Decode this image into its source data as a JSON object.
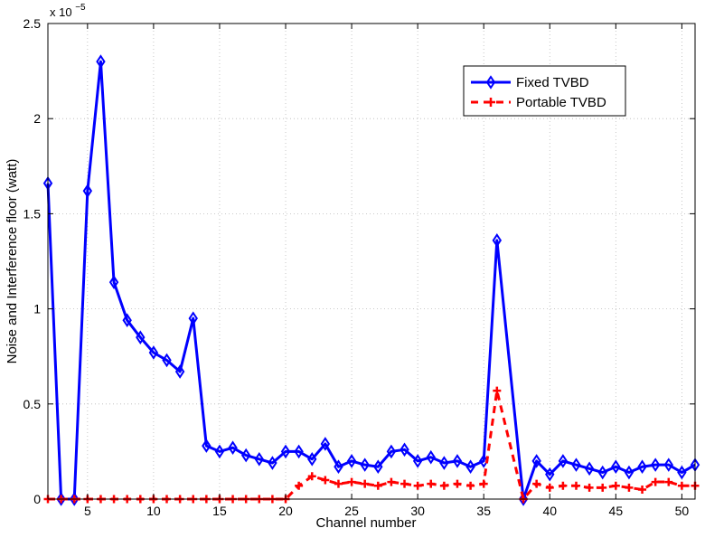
{
  "chart_data": {
    "type": "line",
    "xlabel": "Channel number",
    "ylabel": "Noise and Interference floor (watt)",
    "y_multiplier_label": "x 10",
    "y_multiplier_exponent": "−5",
    "xlim": [
      2,
      51
    ],
    "ylim": [
      0,
      2.5
    ],
    "y_scale_note": "values in units of 1e-5 watt",
    "xticks": [
      5,
      10,
      15,
      20,
      25,
      30,
      35,
      40,
      45,
      50
    ],
    "xtick_labels": [
      "5",
      "10",
      "15",
      "20",
      "25",
      "30",
      "35",
      "40",
      "45",
      "50"
    ],
    "yticks": [
      0,
      0.5,
      1,
      1.5,
      2,
      2.5
    ],
    "ytick_labels": [
      "0",
      "0.5",
      "1",
      "1.5",
      "2",
      "2.5"
    ],
    "grid": true,
    "legend_position": "top-right",
    "x": [
      2,
      3,
      4,
      5,
      6,
      7,
      8,
      9,
      10,
      11,
      12,
      13,
      14,
      15,
      16,
      17,
      18,
      19,
      20,
      21,
      22,
      23,
      24,
      25,
      26,
      27,
      28,
      29,
      30,
      31,
      32,
      33,
      34,
      35,
      36,
      38,
      39,
      40,
      41,
      42,
      43,
      44,
      45,
      46,
      47,
      48,
      49,
      50,
      51
    ],
    "series": [
      {
        "name": "Fixed TVBD",
        "color": "#0000ff",
        "marker": "diamond",
        "line_style": "solid",
        "values": [
          1.66,
          0,
          0,
          1.62,
          2.3,
          1.14,
          0.94,
          0.85,
          0.77,
          0.73,
          0.67,
          0.95,
          0.28,
          0.25,
          0.27,
          0.23,
          0.21,
          0.19,
          0.25,
          0.25,
          0.21,
          0.29,
          0.17,
          0.2,
          0.18,
          0.17,
          0.25,
          0.26,
          0.2,
          0.22,
          0.19,
          0.2,
          0.17,
          0.2,
          1.36,
          0,
          0.2,
          0.13,
          0.2,
          0.18,
          0.16,
          0.14,
          0.17,
          0.14,
          0.17,
          0.18,
          0.18,
          0.14,
          0.18
        ]
      },
      {
        "name": "Portable TVBD",
        "color": "#ff0000",
        "marker": "plus",
        "line_style": "dashed",
        "values": [
          0,
          0,
          0,
          0,
          0,
          0,
          0,
          0,
          0,
          0,
          0,
          0,
          0,
          0,
          0,
          0,
          0,
          0,
          0,
          0.07,
          0.12,
          0.1,
          0.08,
          0.09,
          0.08,
          0.07,
          0.09,
          0.08,
          0.07,
          0.08,
          0.07,
          0.08,
          0.07,
          0.08,
          0.57,
          0,
          0.08,
          0.06,
          0.07,
          0.07,
          0.06,
          0.06,
          0.07,
          0.06,
          0.05,
          0.09,
          0.09,
          0.07,
          0.07
        ]
      }
    ]
  }
}
